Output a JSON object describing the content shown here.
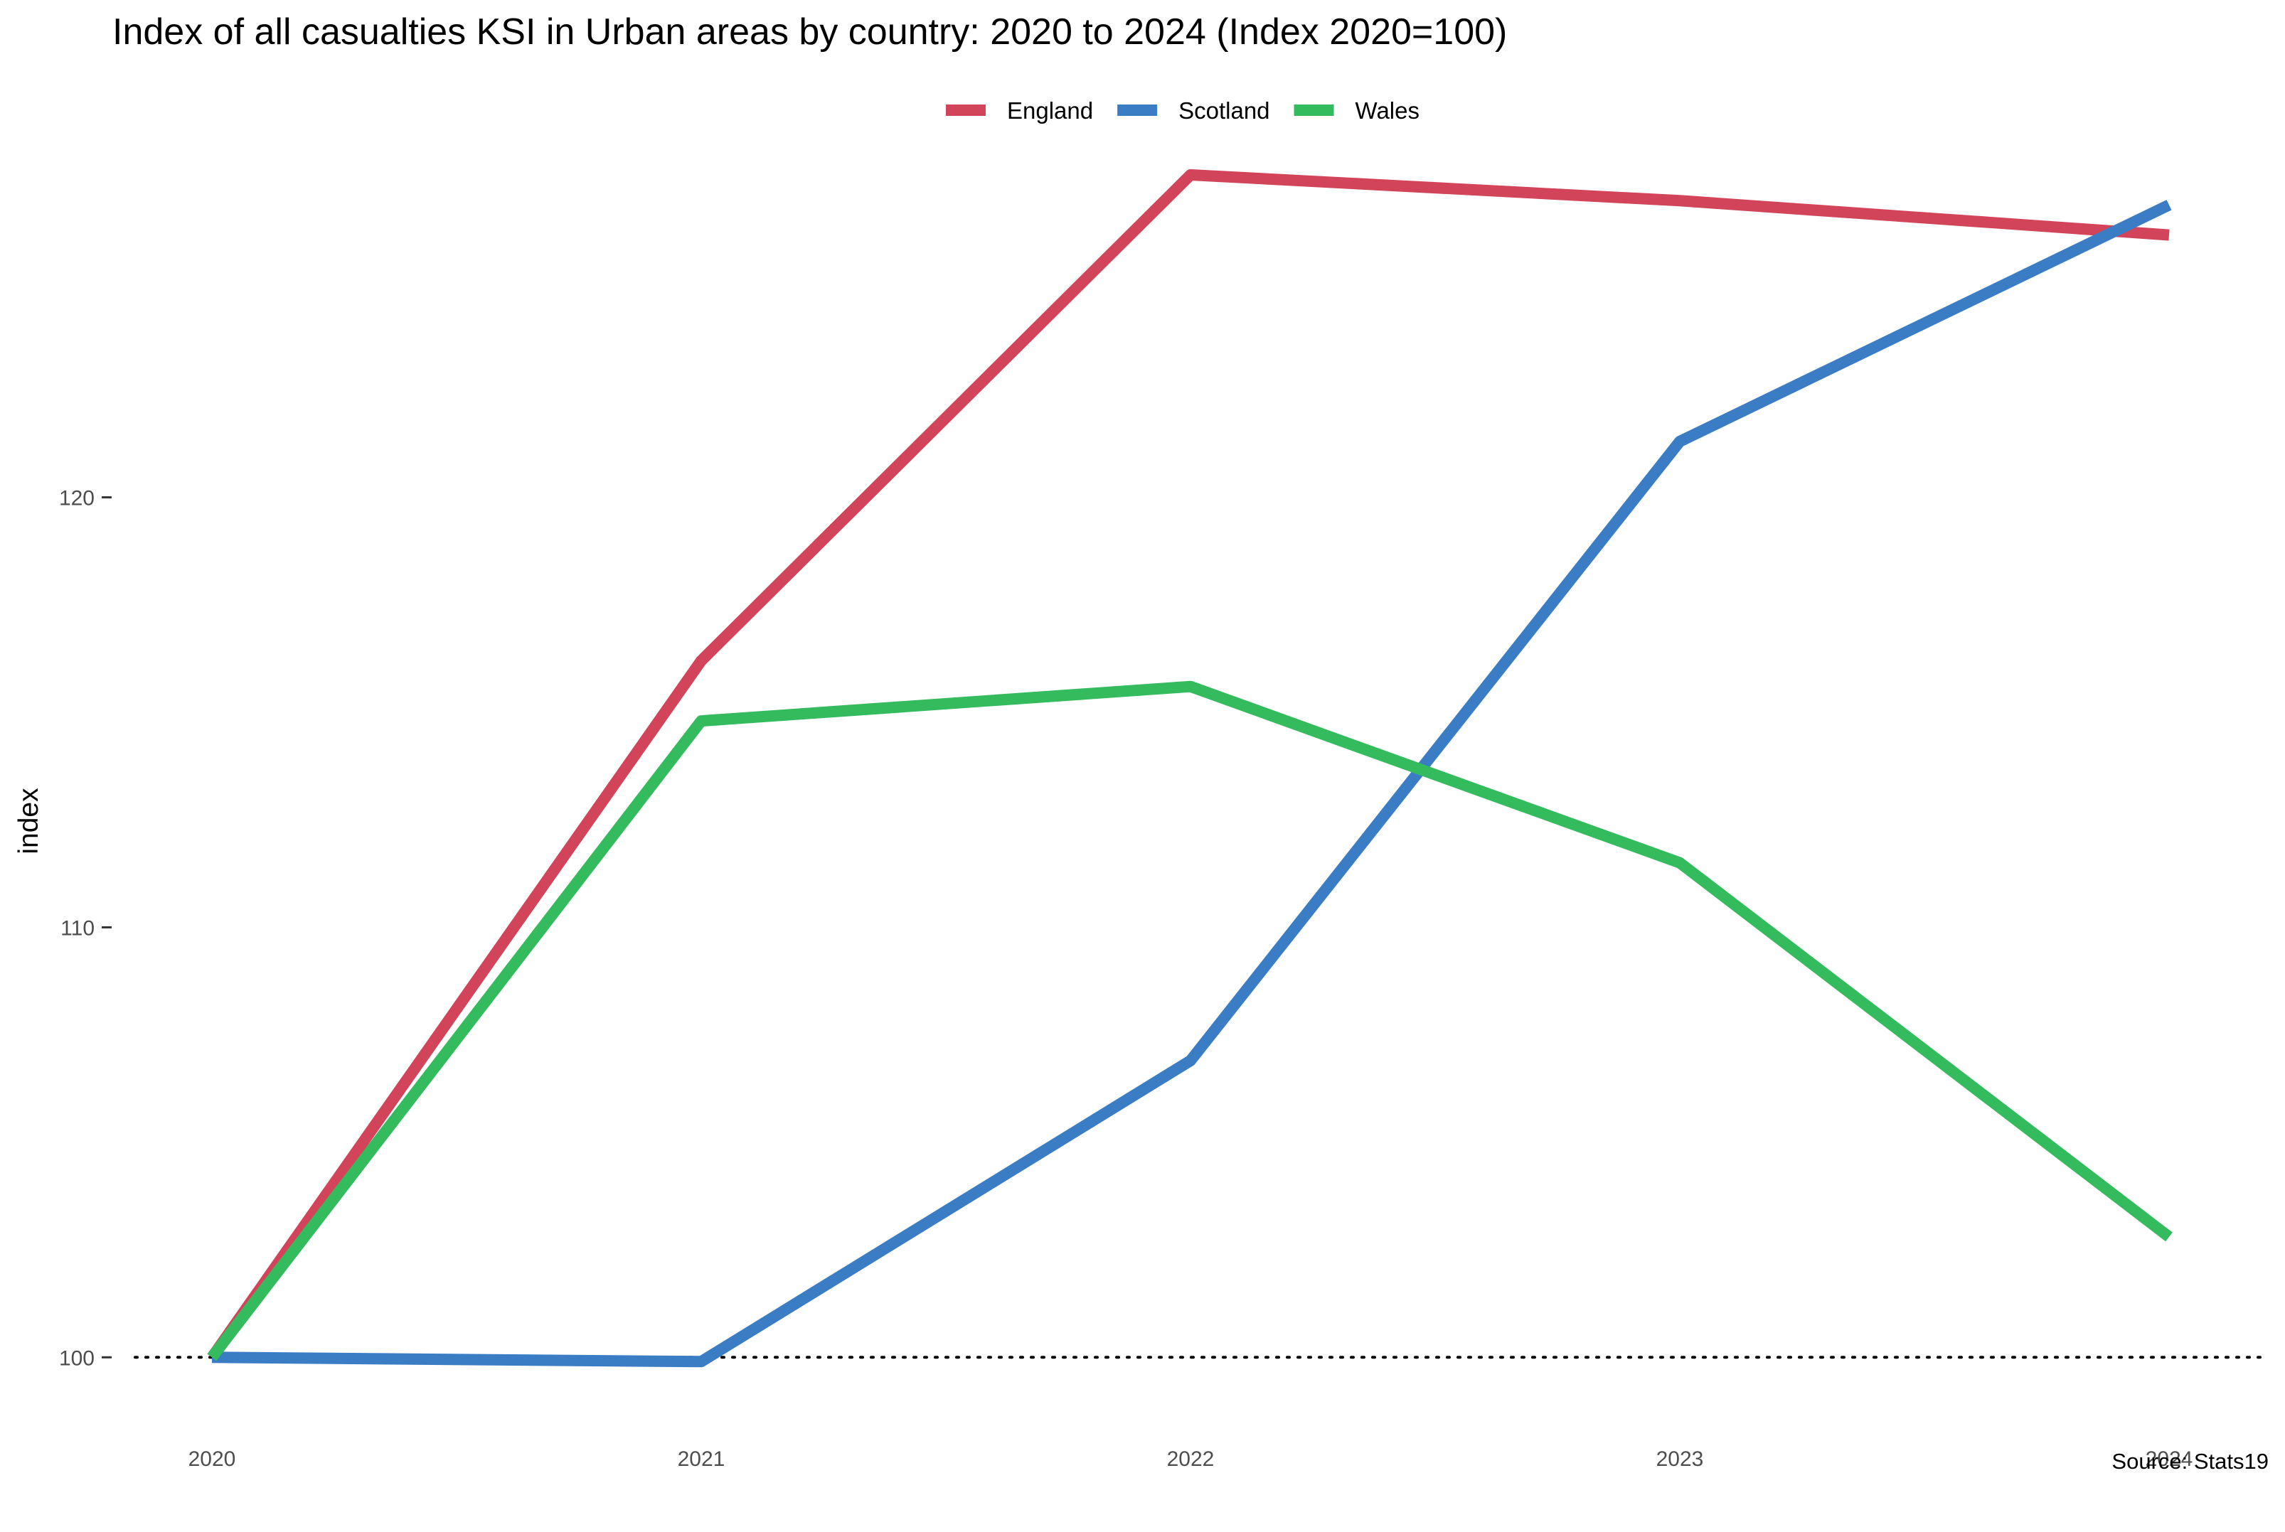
{
  "chart_data": {
    "type": "line",
    "title": "Index of all casualties KSI in Urban areas by country: 2020 to 2024 (Index 2020=100)",
    "xlabel": "",
    "ylabel": "index",
    "caption": "Source: Stats19",
    "x": [
      "2020",
      "2021",
      "2022",
      "2023",
      "2024"
    ],
    "y_ticks": [
      100,
      110,
      120
    ],
    "ylim": [
      98.5,
      129.5
    ],
    "reference_line": {
      "y": 100,
      "style": "dotted"
    },
    "grid": false,
    "legend_position": "top",
    "series": [
      {
        "name": "England",
        "color": "#d1445a",
        "values": [
          100,
          116.2,
          127.5,
          126.9,
          126.1
        ]
      },
      {
        "name": "Scotland",
        "color": "#3a7dc4",
        "values": [
          100,
          99.9,
          106.9,
          121.3,
          126.8
        ]
      },
      {
        "name": "Wales",
        "color": "#34bb5e",
        "values": [
          100,
          114.8,
          115.6,
          111.5,
          102.8
        ]
      }
    ]
  }
}
